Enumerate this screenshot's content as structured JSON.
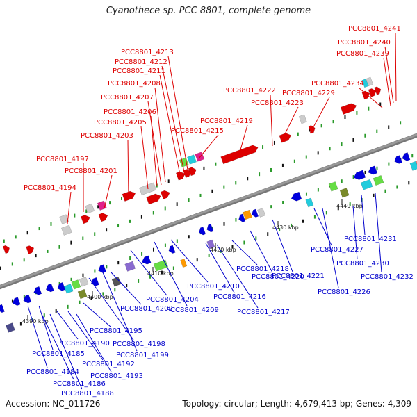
{
  "title": "Cyanothece sp. PCC 8801, complete genome",
  "footer": {
    "accession": "Accession: NC_011726",
    "summary": "Topology: circular; Length: 4,679,413 bp; Genes: 4,309"
  },
  "colors": {
    "forward_label": "#dd0000",
    "reverse_label": "#0000cc",
    "backbone": "#999999"
  },
  "scale_labels": [
    "4390 kbp",
    "4400 kbp",
    "4410 kbp",
    "4420 kbp",
    "4430 kbp",
    "4440 kbp"
  ],
  "upper_labels": [
    "PCC8801_4194",
    "PCC8801_4197",
    "PCC8801_4201",
    "PCC8801_4203",
    "PCC8801_4205",
    "PCC8801_4206",
    "PCC8801_4207",
    "PCC8801_4208",
    "PCC8801_4211",
    "PCC8801_4212",
    "PCC8801_4213",
    "PCC8801_4215",
    "PCC8801_4219",
    "PCC8801_4222",
    "PCC8801_4223",
    "PCC8801_4229",
    "PCC8801_4234",
    "PCC8801_4239",
    "PCC8801_4240",
    "PCC8801_4241"
  ],
  "lower_labels": [
    "PCC8801_4184",
    "PCC8801_4185",
    "PCC8801_4186",
    "PCC8801_4188",
    "PCC8801_4190",
    "PCC8801_4192",
    "PCC8801_4193",
    "PCC8801_4195",
    "PCC8801_4198",
    "PCC8801_4199",
    "PCC8801_4202",
    "PCC8801_4204",
    "PCC8801_4209",
    "PCC8801_4210",
    "PCC8801_4216",
    "PCC8801_4217",
    "PCC8801_4218",
    "PCC8801_4220",
    "PCC8801_4221",
    "PCC8801_4226",
    "PCC8801_4227",
    "PCC8801_4230",
    "PCC8801_4231",
    "PCC8801_4232"
  ]
}
